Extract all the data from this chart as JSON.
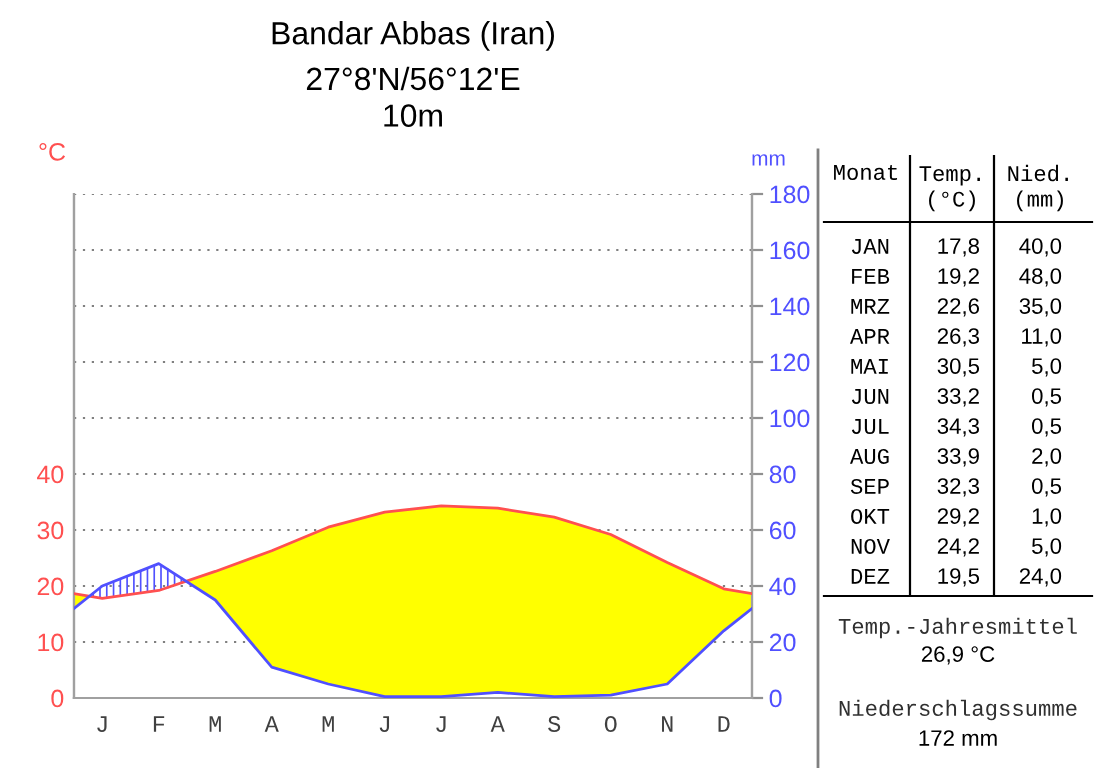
{
  "chart_data": {
    "type": "line",
    "title": "Bandar Abbas (Iran)",
    "subtitle": "27°8'N/56°12'E\n10m",
    "ylabel": "°C",
    "y2label": "mm",
    "categories": [
      "J",
      "F",
      "M",
      "A",
      "M",
      "J",
      "J",
      "A",
      "S",
      "O",
      "N",
      "D"
    ],
    "series": [
      {
        "color": "#ff5050",
        "values": [
          17.8,
          19.2,
          22.6,
          26.3,
          30.5,
          33.2,
          34.3,
          33.9,
          32.3,
          29.2,
          24.2,
          19.5
        ]
      },
      {
        "axis": "y2",
        "color": "#5050ff",
        "values": [
          40.0,
          48.0,
          35.0,
          11.0,
          5.0,
          0.5,
          0.5,
          2.0,
          0.5,
          1.0,
          5.0,
          24.0
        ]
      }
    ],
    "ylim": [
      0,
      90
    ],
    "yticks": [
      0,
      10,
      20,
      30,
      40
    ],
    "y2lim": [
      0,
      180
    ],
    "y2ticks": [
      0,
      20,
      40,
      60,
      80,
      100,
      120,
      140,
      160,
      180
    ],
    "grid": true,
    "marker": "none",
    "line_style": "solid",
    "annotations": [
      "Monat",
      "Temp.\n(°C)",
      "Nied.\n(mm)",
      "JAN",
      "17,8",
      "40,0",
      "FEB",
      "19,2",
      "48,0",
      "MRZ",
      "22,6",
      "35,0",
      "APR",
      "26,3",
      "11,0",
      "MAI",
      "30,5",
      "5,0",
      "JUN",
      "33,2",
      "0,5",
      "JUL",
      "34,3",
      "0,5",
      "AUG",
      "33,9",
      "2,0",
      "SEP",
      "32,3",
      "0,5",
      "OKT",
      "29,2",
      "1,0",
      "NOV",
      "24,2",
      "5,0",
      "DEZ",
      "19,5",
      "24,0",
      "Temp.-Jahresmittel",
      "26,9 °C",
      "Niederschlagssumme",
      "172 mm"
    ]
  }
}
